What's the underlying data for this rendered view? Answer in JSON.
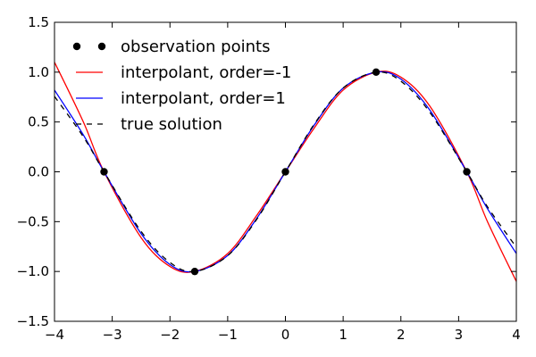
{
  "chart_data": {
    "type": "line",
    "title": "",
    "xlabel": "",
    "ylabel": "",
    "xlim": [
      -4,
      4
    ],
    "ylim": [
      -1.5,
      1.5
    ],
    "xticks": [
      -4,
      -3,
      -2,
      -1,
      0,
      1,
      2,
      3,
      4
    ],
    "yticks": [
      -1.5,
      -1.0,
      -0.5,
      0.0,
      0.5,
      1.0,
      1.5
    ],
    "xtick_labels": [
      "−4",
      "−3",
      "−2",
      "−1",
      "0",
      "1",
      "2",
      "3",
      "4"
    ],
    "ytick_labels": [
      "−1.5",
      "−1.0",
      "−0.5",
      "0.0",
      "0.5",
      "1.0",
      "1.5"
    ],
    "grid": false,
    "legend_position": "top-left",
    "series": [
      {
        "name": "observation points",
        "style": "markers",
        "color": "#000000",
        "x": [
          -3.1416,
          -1.5708,
          0.0,
          1.5708,
          3.1416
        ],
        "y": [
          0.0,
          -1.0,
          0.0,
          1.0,
          0.0
        ]
      },
      {
        "name": "interpolant, order=-1",
        "style": "solid",
        "color": "#ff0000",
        "x": [
          -4.0,
          -3.5,
          -3.1416,
          -2.5,
          -2.0,
          -1.5708,
          -1.0,
          -0.5,
          0.0,
          0.5,
          1.0,
          1.5708,
          2.0,
          2.5,
          3.1416,
          3.5,
          4.0
        ],
        "y": [
          1.1,
          0.5,
          0.0,
          -0.66,
          -0.95,
          -1.0,
          -0.82,
          -0.44,
          0.0,
          0.44,
          0.82,
          1.0,
          0.95,
          0.66,
          0.0,
          -0.5,
          -1.1
        ]
      },
      {
        "name": "interpolant, order=1",
        "style": "solid",
        "color": "#0000ff",
        "x": [
          -4.0,
          -3.5,
          -3.1416,
          -2.5,
          -2.0,
          -1.5708,
          -1.0,
          -0.5,
          0.0,
          0.5,
          1.0,
          1.5708,
          2.0,
          2.5,
          3.1416,
          3.5,
          4.0
        ],
        "y": [
          0.82,
          0.37,
          0.0,
          -0.62,
          -0.93,
          -1.0,
          -0.84,
          -0.47,
          0.0,
          0.47,
          0.84,
          1.0,
          0.93,
          0.62,
          0.0,
          -0.37,
          -0.82
        ]
      },
      {
        "name": "true solution",
        "style": "dashed",
        "color": "#000000",
        "x": [
          -4.0,
          -3.5,
          -3.1416,
          -2.5,
          -2.0,
          -1.5708,
          -1.0,
          -0.5,
          0.0,
          0.5,
          1.0,
          1.5708,
          2.0,
          2.5,
          3.1416,
          3.5,
          4.0
        ],
        "y": [
          0.757,
          0.351,
          0.0,
          -0.598,
          -0.909,
          -1.0,
          -0.841,
          -0.479,
          0.0,
          0.479,
          0.841,
          1.0,
          0.909,
          0.598,
          0.0,
          -0.351,
          -0.757
        ]
      }
    ]
  }
}
